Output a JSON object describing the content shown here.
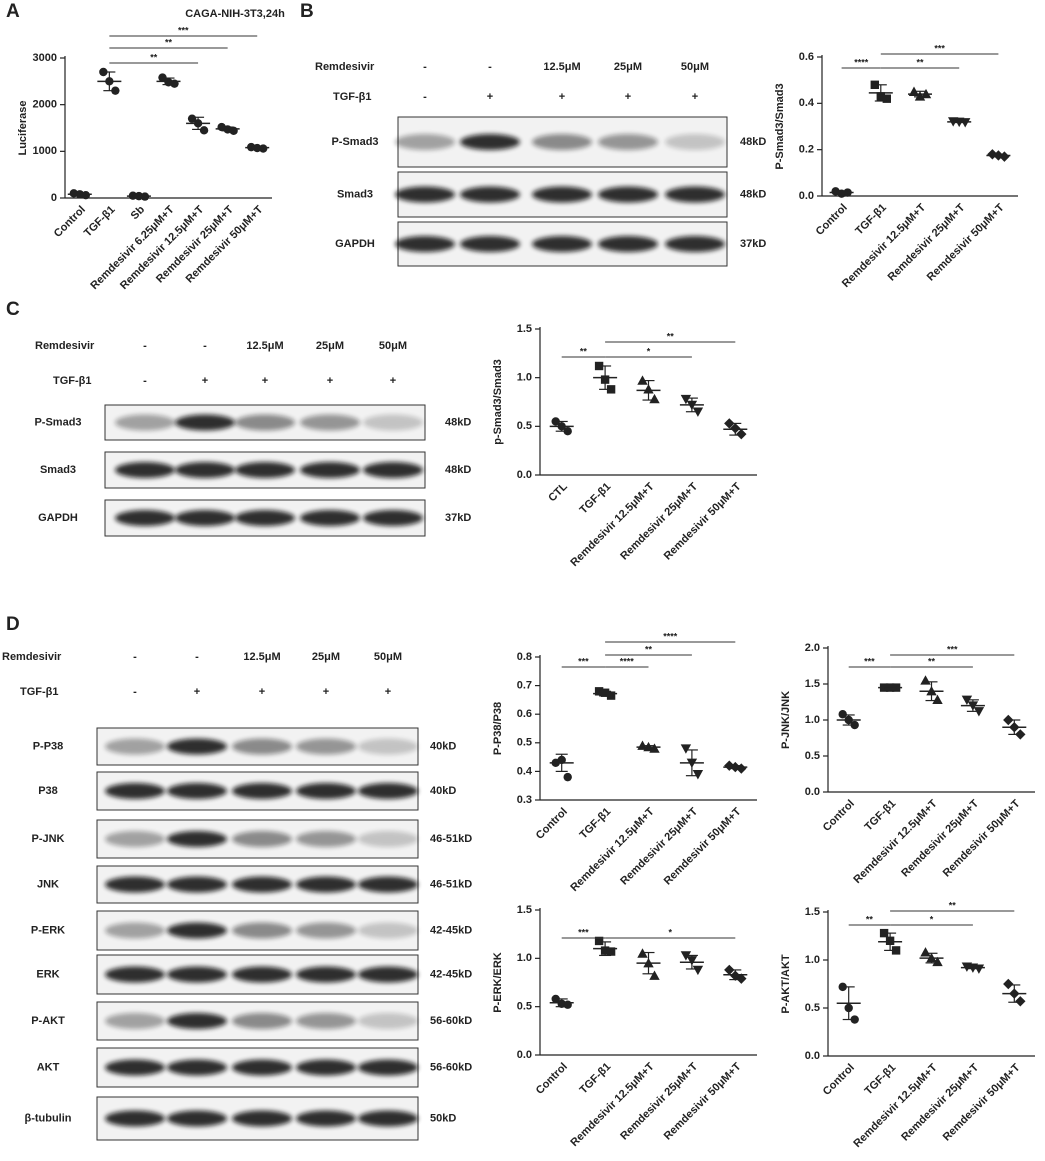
{
  "panel_labels": [
    "A",
    "B",
    "C",
    "D"
  ],
  "chart_data": [
    {
      "type": "dotplot",
      "title": "CAGA-NIH-3T3,24h",
      "y_label": "Luciferase",
      "categories": [
        "Control",
        "TGF-β1",
        "Sb",
        "Remdesivir 6.25μM+T",
        "Remdesivir 12.5μM+T",
        "Remdesivir 25μM+T",
        "Remdesivir 50μM+T"
      ],
      "points": [
        [
          100,
          80,
          60
        ],
        [
          2700,
          2500,
          2300
        ],
        [
          50,
          40,
          30
        ],
        [
          2580,
          2480,
          2450
        ],
        [
          1700,
          1600,
          1450
        ],
        [
          1520,
          1470,
          1440
        ],
        [
          1090,
          1070,
          1060
        ]
      ],
      "means": [
        80,
        2500,
        40,
        2500,
        1600,
        1480,
        1080
      ],
      "sds": [
        20,
        200,
        10,
        70,
        130,
        40,
        15
      ],
      "markers": [
        "circle",
        "circle",
        "circle",
        "circle",
        "circle",
        "circle",
        "circle"
      ],
      "color": "#222",
      "ylim": [
        0,
        3000
      ],
      "yticks": [
        0,
        1000,
        2000,
        3000
      ],
      "brackets": [
        {
          "from": "TGF-β1",
          "to": "Remdesivir 50μM+T",
          "label": "***"
        },
        {
          "from": "TGF-β1",
          "to": "Remdesivir 25μM+T",
          "label": "**"
        },
        {
          "from": "TGF-β1",
          "to": "Remdesivir 12.5μM+T",
          "label": "**"
        }
      ]
    },
    {
      "type": "dotplot",
      "y_label": "P-Smad3/Smad3",
      "categories": [
        "Control",
        "TGF-β1",
        "Remdesivir 12.5μM+T",
        "Remdesivir 25μM+T",
        "Remdesivir 50μM+T"
      ],
      "points": [
        [
          0.02,
          0.01,
          0.015
        ],
        [
          0.48,
          0.43,
          0.42
        ],
        [
          0.45,
          0.43,
          0.44
        ],
        [
          0.322,
          0.32,
          0.318
        ],
        [
          0.18,
          0.175,
          0.17
        ]
      ],
      "means": [
        0.015,
        0.445,
        0.44,
        0.32,
        0.175
      ],
      "sds": [
        0.005,
        0.035,
        0.012,
        0.003,
        0.005
      ],
      "markers": [
        "circle",
        "square",
        "triangle",
        "triangle-down",
        "diamond"
      ],
      "color": "#222",
      "ylim": [
        0,
        0.6
      ],
      "yticks": [
        {
          "value": 0,
          "label": "0.0"
        },
        0.2,
        0.4,
        0.6
      ],
      "brackets": [
        {
          "from": "Control",
          "to": "TGF-β1",
          "label": "****"
        },
        {
          "from": "TGF-β1",
          "to": "Remdesivir 50μM+T",
          "label": "***"
        },
        {
          "from": "TGF-β1",
          "to": "Remdesivir 25μM+T",
          "label": "**"
        }
      ]
    },
    {
      "type": "dotplot",
      "y_label": "p-Smad3/Smad3",
      "categories": [
        "CTL",
        "TGF-β1",
        "Remdesivir 12.5μM+T",
        "Remdesivir 25μM+T",
        "Remdesivir 50μM+T"
      ],
      "points": [
        [
          0.55,
          0.5,
          0.45
        ],
        [
          1.12,
          0.98,
          0.88
        ],
        [
          0.97,
          0.88,
          0.78
        ],
        [
          0.78,
          0.72,
          0.65
        ],
        [
          0.53,
          0.48,
          0.42
        ]
      ],
      "means": [
        0.5,
        1,
        0.87,
        0.72,
        0.47
      ],
      "sds": [
        0.05,
        0.12,
        0.1,
        0.07,
        0.06
      ],
      "markers": [
        "circle",
        "square",
        "triangle",
        "triangle-down",
        "diamond"
      ],
      "color": "#222",
      "ylim": [
        0,
        1.5
      ],
      "yticks": [
        {
          "value": 0,
          "label": "0.0"
        },
        0.5,
        {
          "value": 1,
          "label": "1.0"
        },
        1.5
      ],
      "brackets": [
        {
          "from": "CTL",
          "to": "TGF-β1",
          "label": "**"
        },
        {
          "from": "TGF-β1",
          "to": "Remdesivir 25μM+T",
          "label": "*"
        },
        {
          "from": "TGF-β1",
          "to": "Remdesivir 50μM+T",
          "label": "**"
        }
      ]
    },
    {
      "type": "dotplot",
      "y_label": "P-P38/P38",
      "categories": [
        "Control",
        "TGF-β1",
        "Remdesivir 12.5μM+T",
        "Remdesivir 25μM+T",
        "Remdesivir 50μM+T"
      ],
      "points": [
        [
          0.43,
          0.44,
          0.38
        ],
        [
          0.68,
          0.675,
          0.665
        ],
        [
          0.49,
          0.485,
          0.48
        ],
        [
          0.48,
          0.43,
          0.39
        ],
        [
          0.42,
          0.415,
          0.41
        ]
      ],
      "means": [
        0.43,
        0.672,
        0.485,
        0.43,
        0.415
      ],
      "sds": [
        0.03,
        0.008,
        0.005,
        0.045,
        0.005
      ],
      "markers": [
        "circle",
        "square",
        "triangle",
        "triangle-down",
        "diamond"
      ],
      "color": "#222",
      "ylim": [
        0.3,
        0.8
      ],
      "yticks": [
        0.3,
        0.4,
        0.5,
        0.6,
        0.7,
        0.8
      ],
      "brackets": [
        {
          "from": "Control",
          "to": "TGF-β1",
          "label": "***"
        },
        {
          "from": "TGF-β1",
          "to": "Remdesivir 12.5μM+T",
          "label": "****"
        },
        {
          "from": "TGF-β1",
          "to": "Remdesivir 25μM+T",
          "label": "**"
        },
        {
          "from": "TGF-β1",
          "to": "Remdesivir 50μM+T",
          "label": "****"
        }
      ]
    },
    {
      "type": "dotplot",
      "y_label": "P-JNK/JNK",
      "categories": [
        "Control",
        "TGF-β1",
        "Remdesivir 12.5μM+T",
        "Remdesivir 25μM+T",
        "Remdesivir 50μM+T"
      ],
      "points": [
        [
          1.08,
          1,
          0.93
        ],
        [
          1.45,
          1.45,
          1.45
        ],
        [
          1.55,
          1.4,
          1.28
        ],
        [
          1.28,
          1.2,
          1.12
        ],
        [
          1,
          0.9,
          0.8
        ]
      ],
      "means": [
        1,
        1.45,
        1.4,
        1.2,
        0.9
      ],
      "sds": [
        0.07,
        0.01,
        0.13,
        0.08,
        0.1
      ],
      "markers": [
        "circle",
        "square",
        "triangle",
        "triangle-down",
        "diamond"
      ],
      "color": "#222",
      "ylim": [
        0,
        2
      ],
      "yticks": [
        {
          "value": 0,
          "label": "0.0"
        },
        0.5,
        {
          "value": 1,
          "label": "1.0"
        },
        1.5,
        {
          "value": 2,
          "label": "2.0"
        }
      ],
      "brackets": [
        {
          "from": "Control",
          "to": "TGF-β1",
          "label": "***"
        },
        {
          "from": "TGF-β1",
          "to": "Remdesivir 25μM+T",
          "label": "**"
        },
        {
          "from": "TGF-β1",
          "to": "Remdesivir 50μM+T",
          "label": "***"
        }
      ]
    },
    {
      "type": "dotplot",
      "y_label": "P-ERK/ERK",
      "categories": [
        "Control",
        "TGF-β1",
        "Remdesivir 12.5μM+T",
        "Remdesivir 25μM+T",
        "Remdesivir 50μM+T"
      ],
      "points": [
        [
          0.58,
          0.53,
          0.52
        ],
        [
          1.18,
          1.08,
          1.07
        ],
        [
          1.05,
          0.95,
          0.82
        ],
        [
          1.03,
          0.98,
          0.88
        ],
        [
          0.88,
          0.82,
          0.79
        ]
      ],
      "means": [
        0.54,
        1.1,
        0.95,
        0.96,
        0.83
      ],
      "sds": [
        0.04,
        0.07,
        0.11,
        0.07,
        0.05
      ],
      "markers": [
        "circle",
        "square",
        "triangle",
        "triangle-down",
        "diamond"
      ],
      "color": "#222",
      "ylim": [
        0,
        1.5
      ],
      "yticks": [
        {
          "value": 0,
          "label": "0.0"
        },
        0.5,
        {
          "value": 1,
          "label": "1.0"
        },
        1.5
      ],
      "brackets": [
        {
          "from": "Control",
          "to": "TGF-β1",
          "label": "***"
        },
        {
          "from": "TGF-β1",
          "to": "Remdesivir 50μM+T",
          "label": "*"
        }
      ]
    },
    {
      "type": "dotplot",
      "y_label": "P-AKT/AKT",
      "categories": [
        "Control",
        "TGF-β1",
        "Remdesivir 12.5μM+T",
        "Remdesivir 25μM+T",
        "Remdesivir 50μM+T"
      ],
      "points": [
        [
          0.72,
          0.5,
          0.38
        ],
        [
          1.28,
          1.2,
          1.1
        ],
        [
          1.08,
          1.02,
          0.98
        ],
        [
          0.93,
          0.92,
          0.91
        ],
        [
          0.75,
          0.65,
          0.57
        ]
      ],
      "means": [
        0.55,
        1.19,
        1.02,
        0.92,
        0.65
      ],
      "sds": [
        0.17,
        0.09,
        0.05,
        0.01,
        0.09
      ],
      "markers": [
        "circle",
        "square",
        "triangle",
        "triangle-down",
        "diamond"
      ],
      "color": "#222",
      "ylim": [
        0,
        1.5
      ],
      "yticks": [
        {
          "value": 0,
          "label": "0.0"
        },
        0.5,
        {
          "value": 1,
          "label": "1.0"
        },
        1.5
      ],
      "brackets": [
        {
          "from": "Control",
          "to": "TGF-β1",
          "label": "**"
        },
        {
          "from": "TGF-β1",
          "to": "Remdesivir 25μM+T",
          "label": "*"
        },
        {
          "from": "TGF-β1",
          "to": "Remdesivir 50μM+T",
          "label": "**"
        }
      ]
    }
  ],
  "blots": [
    {
      "treatments": [
        {
          "name": "Remdesivir",
          "lanes": [
            "-",
            "-",
            "12.5μM",
            "25μM",
            "50μM"
          ]
        },
        {
          "name": "TGF-β1",
          "lanes": [
            "-",
            "+",
            "+",
            "+",
            "+"
          ]
        }
      ],
      "bands": [
        {
          "name": "P-Smad3",
          "size": "48kD"
        },
        {
          "name": "Smad3",
          "size": "48kD"
        },
        {
          "name": "GAPDH",
          "size": "37kD"
        }
      ]
    },
    {
      "treatments": [
        {
          "name": "Remdesivir",
          "lanes": [
            "-",
            "-",
            "12.5μM",
            "25μM",
            "50μM"
          ]
        },
        {
          "name": "TGF-β1",
          "lanes": [
            "-",
            "+",
            "+",
            "+",
            "+"
          ]
        }
      ],
      "bands": [
        {
          "name": "P-Smad3",
          "size": "48kD"
        },
        {
          "name": "Smad3",
          "size": "48kD"
        },
        {
          "name": "GAPDH",
          "size": "37kD"
        }
      ]
    },
    {
      "treatments": [
        {
          "name": "Remdesivir",
          "lanes": [
            "-",
            "-",
            "12.5μM",
            "25μM",
            "50μM"
          ]
        },
        {
          "name": "TGF-β1",
          "lanes": [
            "-",
            "+",
            "+",
            "+",
            "+"
          ]
        }
      ],
      "bands": [
        {
          "name": "P-P38",
          "size": "40kD"
        },
        {
          "name": "P38",
          "size": "40kD"
        },
        {
          "name": "P-JNK",
          "size": "46-51kD"
        },
        {
          "name": "JNK",
          "size": "46-51kD"
        },
        {
          "name": "P-ERK",
          "size": "42-45kD"
        },
        {
          "name": "ERK",
          "size": "42-45kD"
        },
        {
          "name": "P-AKT",
          "size": "56-60kD"
        },
        {
          "name": "AKT",
          "size": "56-60kD"
        },
        {
          "name": "β-tubulin",
          "size": "50kD"
        }
      ]
    }
  ]
}
